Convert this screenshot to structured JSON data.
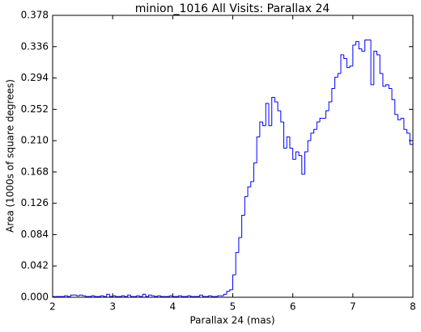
{
  "chart_data": {
    "type": "histogram",
    "title": "minion_1016 All Visits: Parallax 24",
    "x_label": "Parallax 24 (mas)",
    "y_label": "Area (1000s of square degrees)",
    "color": "#0000ff",
    "bins": [
      2,
      2.05,
      2.1,
      2.15,
      2.2,
      2.25,
      2.3,
      2.35,
      2.4,
      2.45,
      2.5,
      2.55,
      2.6,
      2.65,
      2.7,
      2.75,
      2.8,
      2.85,
      2.9,
      2.95,
      3,
      3.05,
      3.1,
      3.15,
      3.2,
      3.25,
      3.3,
      3.35,
      3.4,
      3.45,
      3.5,
      3.55,
      3.6,
      3.65,
      3.7,
      3.75,
      3.8,
      3.85,
      3.9,
      3.95,
      4,
      4.05,
      4.1,
      4.15,
      4.2,
      4.25,
      4.3,
      4.35,
      4.4,
      4.45,
      4.5,
      4.55,
      4.6,
      4.65,
      4.7,
      4.75,
      4.8,
      4.85,
      4.9,
      4.95,
      5,
      5.05,
      5.1,
      5.15,
      5.2,
      5.25,
      5.3,
      5.35,
      5.4,
      5.45,
      5.5,
      5.55,
      5.6,
      5.65,
      5.7,
      5.75,
      5.8,
      5.85,
      5.9,
      5.95,
      6,
      6.05,
      6.1,
      6.15,
      6.2,
      6.25,
      6.3,
      6.35,
      6.4,
      6.45,
      6.5,
      6.55,
      6.6,
      6.65,
      6.7,
      6.75,
      6.8,
      6.85,
      6.9,
      6.95,
      7,
      7.05,
      7.1,
      7.15,
      7.2,
      7.25,
      7.3,
      7.35,
      7.4,
      7.45,
      7.5,
      7.55,
      7.6,
      7.65,
      7.7,
      7.75,
      7.8,
      7.85,
      7.9,
      7.95,
      8
    ],
    "values": [
      0.001,
      0.001,
      0.001,
      0.001,
      0.002,
      0.001,
      0.003,
      0.003,
      0.002,
      0.003,
      0.002,
      0.001,
      0.001,
      0.002,
      0.001,
      0.001,
      0.002,
      0.001,
      0.004,
      0.001,
      0.002,
      0.001,
      0.001,
      0.002,
      0.001,
      0.003,
      0.001,
      0.001,
      0.002,
      0.001,
      0.004,
      0.001,
      0.003,
      0.002,
      0.001,
      0.002,
      0.001,
      0.001,
      0.001,
      0.002,
      0.001,
      0.001,
      0.002,
      0.001,
      0.001,
      0.002,
      0.001,
      0.001,
      0.001,
      0.003,
      0.001,
      0.001,
      0.002,
      0.001,
      0.001,
      0.002,
      0.002,
      0.004,
      0.008,
      0.01,
      0.03,
      0.06,
      0.08,
      0.11,
      0.135,
      0.148,
      0.155,
      0.18,
      0.215,
      0.235,
      0.23,
      0.26,
      0.23,
      0.268,
      0.262,
      0.25,
      0.235,
      0.2,
      0.215,
      0.2,
      0.185,
      0.195,
      0.19,
      0.165,
      0.195,
      0.21,
      0.22,
      0.225,
      0.235,
      0.24,
      0.24,
      0.25,
      0.262,
      0.28,
      0.295,
      0.3,
      0.325,
      0.32,
      0.308,
      0.31,
      0.338,
      0.343,
      0.333,
      0.33,
      0.345,
      0.345,
      0.285,
      0.33,
      0.325,
      0.3,
      0.283,
      0.285,
      0.28,
      0.265,
      0.245,
      0.238,
      0.24,
      0.225,
      0.22,
      0.205
    ],
    "xlim": [
      2,
      8
    ],
    "xticks": [
      2,
      3,
      4,
      5,
      6,
      7,
      8
    ],
    "ylim": [
      0,
      0.378
    ],
    "yticks": [
      {
        "value": 0,
        "label": "0.000"
      },
      {
        "value": 0.042,
        "label": "0.042"
      },
      {
        "value": 0.084,
        "label": "0.084"
      },
      {
        "value": 0.126,
        "label": "0.126"
      },
      {
        "value": 0.168,
        "label": "0.168"
      },
      {
        "value": 0.21,
        "label": "0.210"
      },
      {
        "value": 0.252,
        "label": "0.252"
      },
      {
        "value": 0.294,
        "label": "0.294"
      },
      {
        "value": 0.336,
        "label": "0.336"
      },
      {
        "value": 0.378,
        "label": "0.378"
      }
    ]
  }
}
